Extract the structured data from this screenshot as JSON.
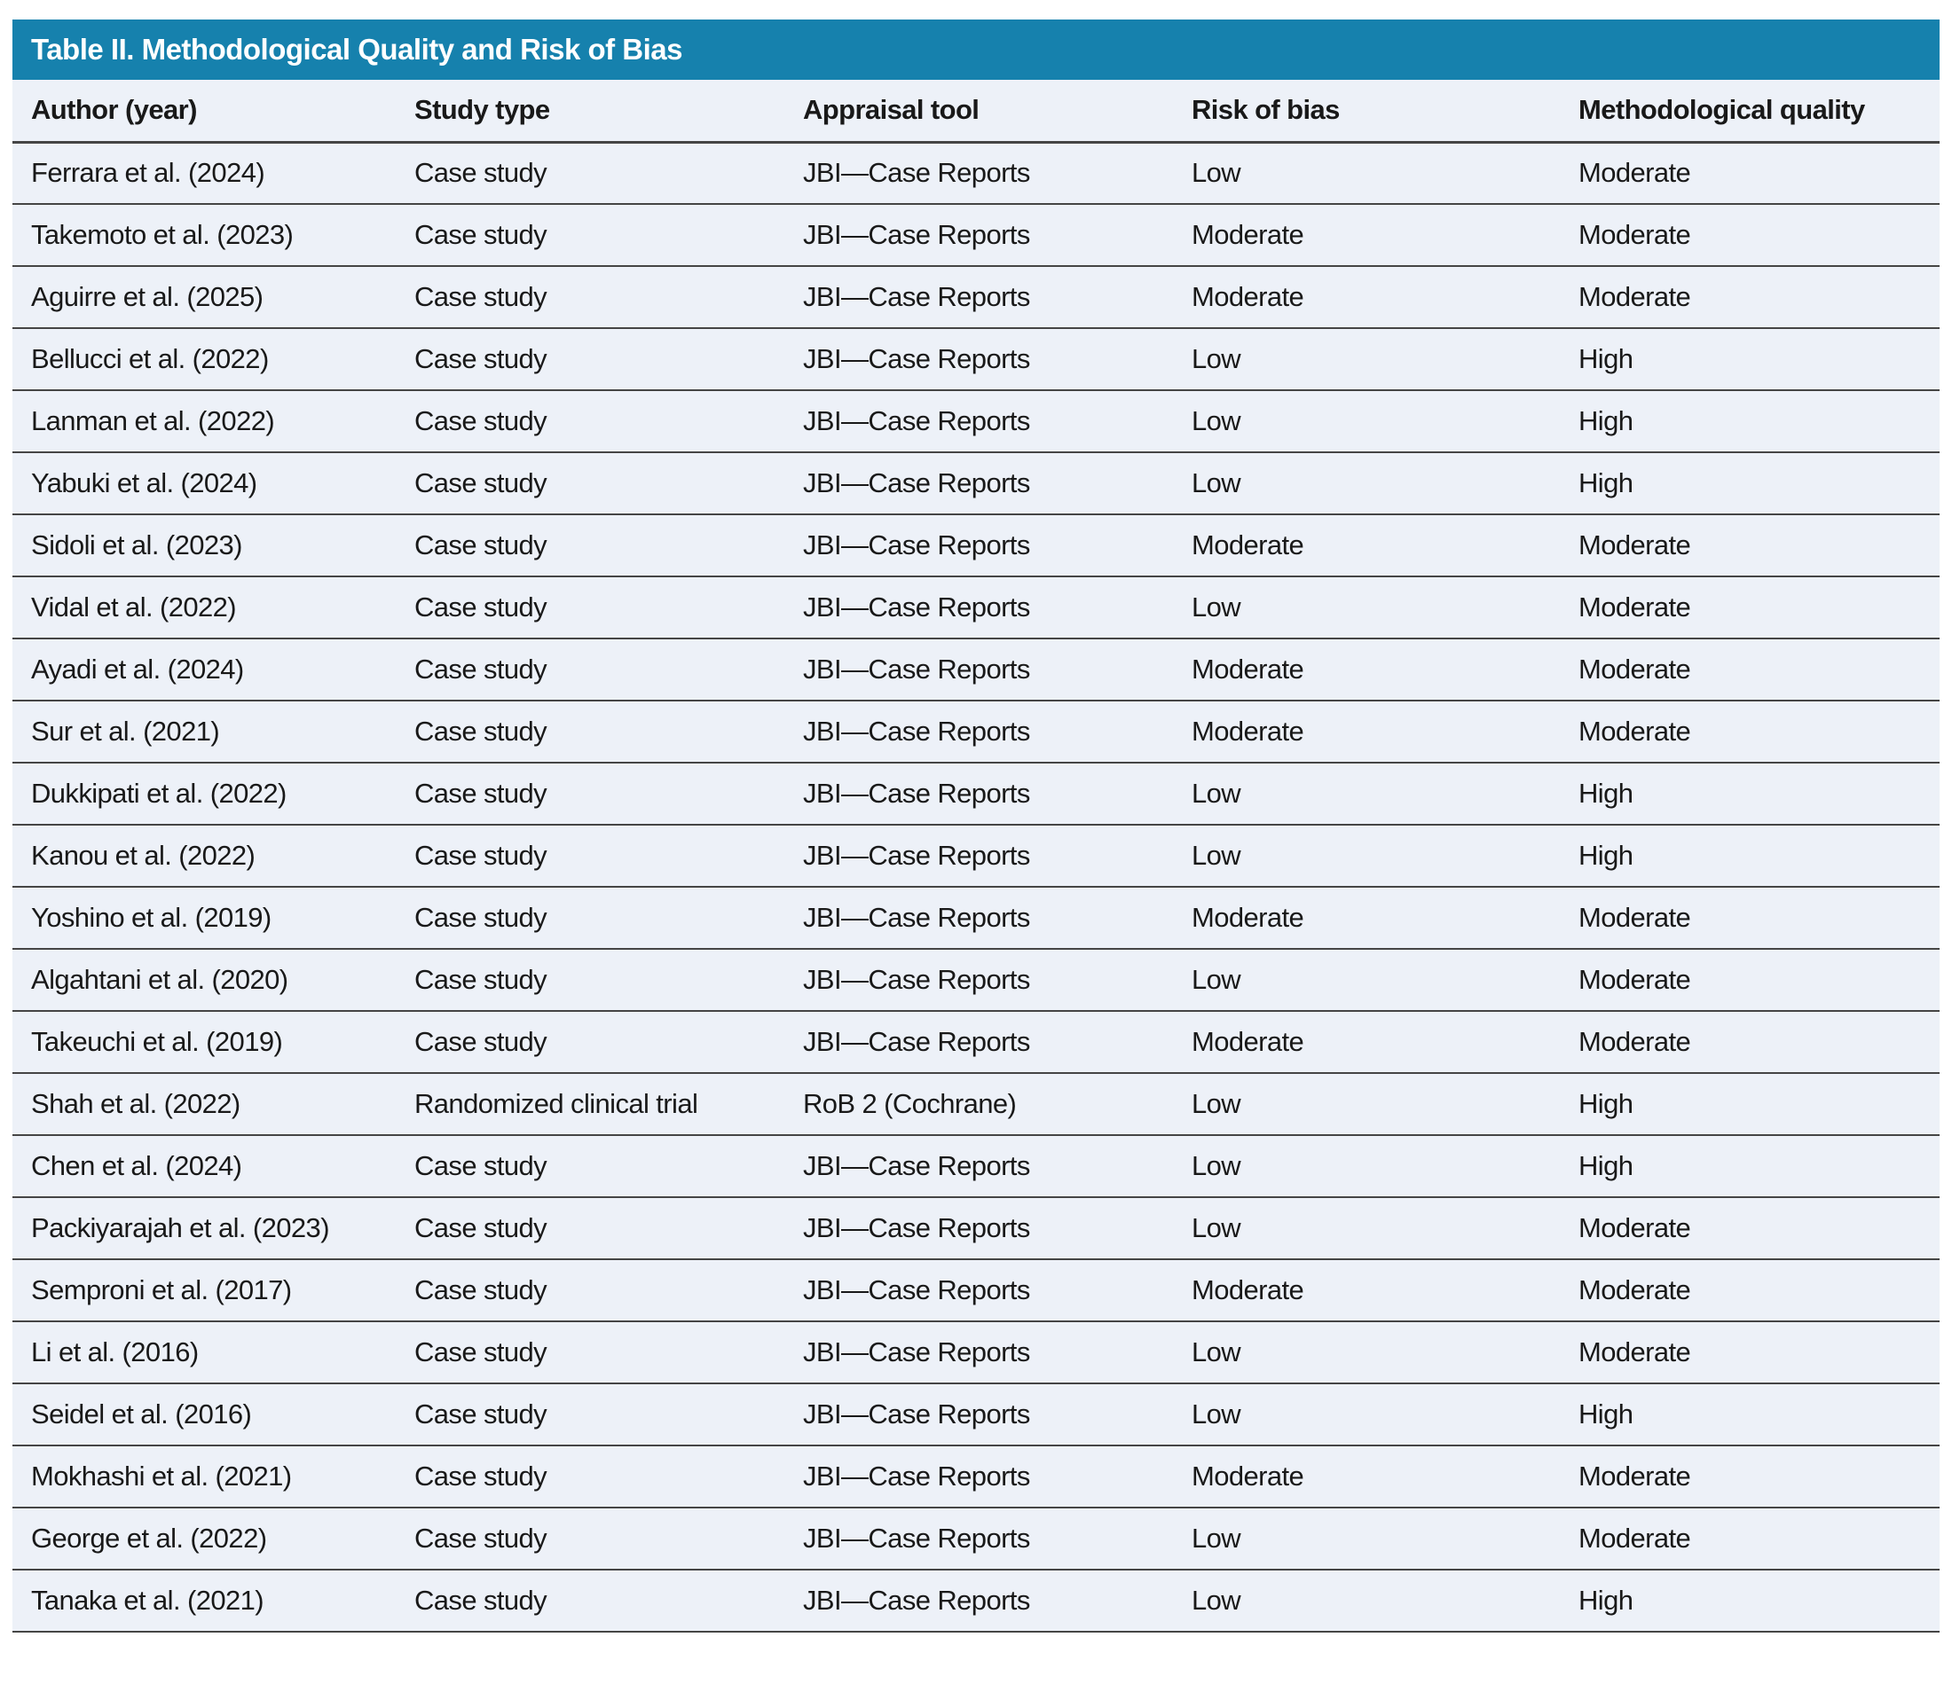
{
  "colors": {
    "header_bar": "#1681ad",
    "row_background": "#edf1f8",
    "rule_line": "#454545",
    "title_text": "#ffffff",
    "body_text": "#191919"
  },
  "table": {
    "title": "Table II. Methodological Quality and Risk of Bias",
    "columns": [
      "Author (year)",
      "Study type",
      "Appraisal tool",
      "Risk of bias",
      "Methodological quality"
    ],
    "rows": [
      {
        "author": "Ferrara et al. (2024)",
        "study_type": "Case study",
        "appraisal_tool": "JBI—Case Reports",
        "risk_of_bias": "Low",
        "methodological_quality": "Moderate"
      },
      {
        "author": "Takemoto et al. (2023)",
        "study_type": "Case study",
        "appraisal_tool": "JBI—Case Reports",
        "risk_of_bias": "Moderate",
        "methodological_quality": "Moderate"
      },
      {
        "author": "Aguirre et al. (2025)",
        "study_type": "Case study",
        "appraisal_tool": "JBI—Case Reports",
        "risk_of_bias": "Moderate",
        "methodological_quality": "Moderate"
      },
      {
        "author": "Bellucci et al. (2022)",
        "study_type": "Case study",
        "appraisal_tool": "JBI—Case Reports",
        "risk_of_bias": "Low",
        "methodological_quality": "High"
      },
      {
        "author": "Lanman et al. (2022)",
        "study_type": "Case study",
        "appraisal_tool": "JBI—Case Reports",
        "risk_of_bias": "Low",
        "methodological_quality": "High"
      },
      {
        "author": "Yabuki et al. (2024)",
        "study_type": "Case study",
        "appraisal_tool": "JBI—Case Reports",
        "risk_of_bias": "Low",
        "methodological_quality": "High"
      },
      {
        "author": "Sidoli et al. (2023)",
        "study_type": "Case study",
        "appraisal_tool": "JBI—Case Reports",
        "risk_of_bias": "Moderate",
        "methodological_quality": "Moderate"
      },
      {
        "author": "Vidal et al. (2022)",
        "study_type": "Case study",
        "appraisal_tool": "JBI—Case Reports",
        "risk_of_bias": "Low",
        "methodological_quality": "Moderate"
      },
      {
        "author": "Ayadi et al. (2024)",
        "study_type": "Case study",
        "appraisal_tool": "JBI—Case Reports",
        "risk_of_bias": "Moderate",
        "methodological_quality": "Moderate"
      },
      {
        "author": "Sur et al. (2021)",
        "study_type": "Case study",
        "appraisal_tool": "JBI—Case Reports",
        "risk_of_bias": "Moderate",
        "methodological_quality": "Moderate"
      },
      {
        "author": "Dukkipati et al. (2022)",
        "study_type": "Case study",
        "appraisal_tool": "JBI—Case Reports",
        "risk_of_bias": "Low",
        "methodological_quality": "High"
      },
      {
        "author": "Kanou et al. (2022)",
        "study_type": "Case study",
        "appraisal_tool": "JBI—Case Reports",
        "risk_of_bias": "Low",
        "methodological_quality": "High"
      },
      {
        "author": "Yoshino et al. (2019)",
        "study_type": "Case study",
        "appraisal_tool": "JBI—Case Reports",
        "risk_of_bias": "Moderate",
        "methodological_quality": "Moderate"
      },
      {
        "author": "Algahtani et al. (2020)",
        "study_type": "Case study",
        "appraisal_tool": "JBI—Case Reports",
        "risk_of_bias": "Low",
        "methodological_quality": "Moderate"
      },
      {
        "author": "Takeuchi et al. (2019)",
        "study_type": "Case study",
        "appraisal_tool": "JBI—Case Reports",
        "risk_of_bias": "Moderate",
        "methodological_quality": "Moderate"
      },
      {
        "author": "Shah et al. (2022)",
        "study_type": "Randomized clinical trial",
        "appraisal_tool": "RoB 2 (Cochrane)",
        "risk_of_bias": "Low",
        "methodological_quality": "High"
      },
      {
        "author": "Chen et al. (2024)",
        "study_type": "Case study",
        "appraisal_tool": "JBI—Case Reports",
        "risk_of_bias": "Low",
        "methodological_quality": "High"
      },
      {
        "author": "Packiyarajah et al. (2023)",
        "study_type": "Case study",
        "appraisal_tool": "JBI—Case Reports",
        "risk_of_bias": "Low",
        "methodological_quality": "Moderate"
      },
      {
        "author": "Semproni et al. (2017)",
        "study_type": "Case study",
        "appraisal_tool": "JBI—Case Reports",
        "risk_of_bias": "Moderate",
        "methodological_quality": "Moderate"
      },
      {
        "author": "Li et al. (2016)",
        "study_type": "Case study",
        "appraisal_tool": "JBI—Case Reports",
        "risk_of_bias": "Low",
        "methodological_quality": "Moderate"
      },
      {
        "author": "Seidel et al. (2016)",
        "study_type": "Case study",
        "appraisal_tool": "JBI—Case Reports",
        "risk_of_bias": "Low",
        "methodological_quality": "High"
      },
      {
        "author": "Mokhashi et al. (2021)",
        "study_type": "Case study",
        "appraisal_tool": "JBI—Case Reports",
        "risk_of_bias": "Moderate",
        "methodological_quality": "Moderate"
      },
      {
        "author": "George et al. (2022)",
        "study_type": "Case study",
        "appraisal_tool": "JBI—Case Reports",
        "risk_of_bias": "Low",
        "methodological_quality": "Moderate"
      },
      {
        "author": "Tanaka et al. (2021)",
        "study_type": "Case study",
        "appraisal_tool": "JBI—Case Reports",
        "risk_of_bias": "Low",
        "methodological_quality": "High"
      }
    ]
  }
}
